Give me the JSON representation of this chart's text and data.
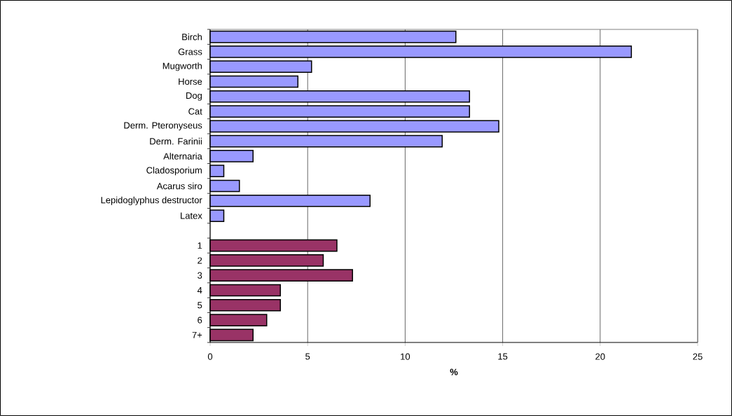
{
  "chart_data": {
    "type": "bar",
    "orientation": "horizontal",
    "xlabel": "%",
    "categories": [
      "Birch",
      "Grass",
      "Mugworth",
      "Horse",
      "Dog",
      "Cat",
      "Derm. Pteronyseus",
      "Derm. Farinii",
      "Alternaria",
      "Cladosporium",
      "Acarus siro",
      "Lepidoglyphus destructor",
      "Latex",
      null,
      "1",
      "2",
      "3",
      "4",
      "5",
      "6",
      "7+"
    ],
    "series": [
      {
        "color": "#9999ff",
        "values": [
          12.6,
          21.6,
          5.2,
          4.5,
          13.3,
          13.3,
          14.8,
          11.9,
          2.2,
          0.7,
          1.5,
          8.2,
          0.7,
          null,
          null,
          null,
          null,
          null,
          null,
          null,
          null
        ]
      },
      {
        "color": "#993366",
        "values": [
          null,
          null,
          null,
          null,
          null,
          null,
          null,
          null,
          null,
          null,
          null,
          null,
          null,
          null,
          6.5,
          5.8,
          7.3,
          3.6,
          3.6,
          2.9,
          2.2
        ]
      }
    ],
    "xlim": [
      0,
      25
    ],
    "xticks": [
      0,
      5,
      10,
      15,
      20,
      25
    ],
    "grid": "x"
  }
}
